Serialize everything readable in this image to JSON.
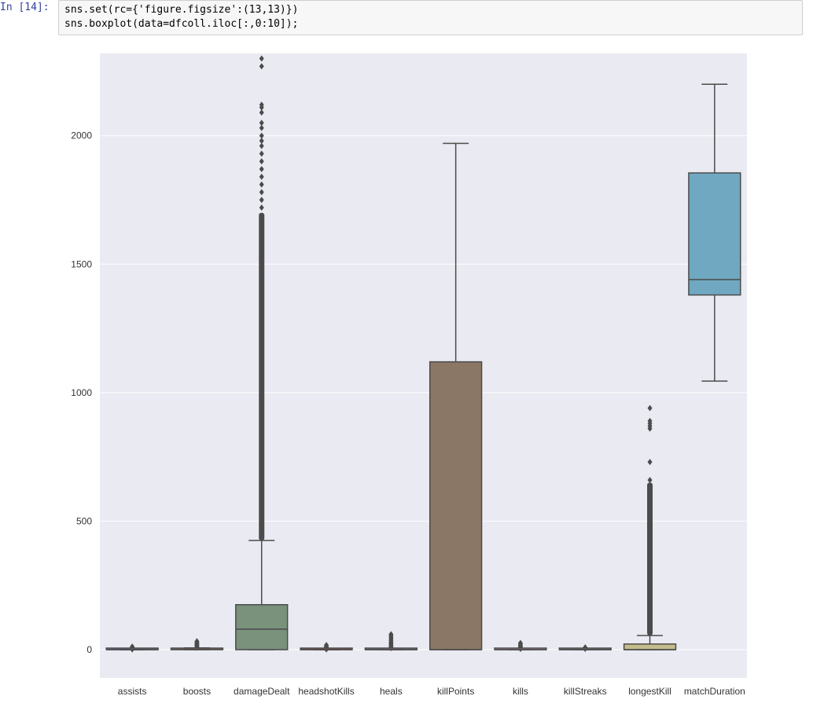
{
  "cell": {
    "prompt": "In [14]:",
    "code_lines": [
      "sns.set(rc={'figure.figsize':(13,13)})",
      "sns.boxplot(data=dfcoll.iloc[:,0:10]);"
    ]
  },
  "colors": {
    "plot_bg": "#eaeaf2",
    "grid": "#ffffff",
    "line": "#4b4b4b"
  },
  "chart_data": {
    "type": "box",
    "title": "",
    "xlabel": "",
    "ylabel": "",
    "ylim": [
      -110,
      2320
    ],
    "yticks": [
      0,
      500,
      1000,
      1500,
      2000
    ],
    "grid": true,
    "categories": [
      "assists",
      "boosts",
      "damageDealt",
      "headshotKills",
      "heals",
      "killPoints",
      "kills",
      "killStreaks",
      "longestKill",
      "matchDuration"
    ],
    "boxes": [
      {
        "name": "assists",
        "color": "#6b7fa0",
        "q1": 0,
        "median": 0,
        "q3": 0,
        "whislo": 0,
        "whishi": 0,
        "fliers": [
          1,
          2,
          3,
          4,
          5,
          6,
          7,
          8,
          10,
          12
        ]
      },
      {
        "name": "boosts",
        "color": "#c88f60",
        "q1": 0,
        "median": 1,
        "q3": 3,
        "whislo": 0,
        "whishi": 7,
        "fliers": [
          8,
          10,
          12,
          14,
          16,
          18,
          20,
          22,
          24,
          26,
          28,
          30,
          33
        ]
      },
      {
        "name": "damageDealt",
        "color": "#7a917c",
        "q1": 0,
        "median": 80,
        "q3": 175,
        "whislo": 0,
        "whishi": 425,
        "fliers_dense_range": [
          425,
          1700
        ],
        "fliers": [
          1720,
          1750,
          1780,
          1810,
          1840,
          1870,
          1900,
          1930,
          1960,
          1980,
          2000,
          2030,
          2050,
          2090,
          2110,
          2120,
          2270,
          2300
        ]
      },
      {
        "name": "headshotKills",
        "color": "#a85c5c",
        "q1": 0,
        "median": 0,
        "q3": 0,
        "whislo": 0,
        "whishi": 0,
        "fliers": [
          1,
          2,
          3,
          4,
          6,
          8,
          10,
          12,
          15,
          18
        ]
      },
      {
        "name": "heals",
        "color": "#8c7fa8",
        "q1": 0,
        "median": 0,
        "q3": 2,
        "whislo": 0,
        "whishi": 5,
        "fliers": [
          6,
          8,
          10,
          14,
          18,
          22,
          26,
          30,
          35,
          40,
          45,
          50,
          55,
          60
        ]
      },
      {
        "name": "killPoints",
        "color": "#8b7766",
        "q1": 0,
        "median": 0,
        "q3": 1120,
        "whislo": 0,
        "whishi": 1970,
        "fliers": []
      },
      {
        "name": "kills",
        "color": "#c996c0",
        "q1": 0,
        "median": 0,
        "q3": 1,
        "whislo": 0,
        "whishi": 2,
        "fliers": [
          3,
          4,
          5,
          6,
          8,
          10,
          12,
          15,
          18,
          22,
          26
        ]
      },
      {
        "name": "killStreaks",
        "color": "#8a8a8a",
        "q1": 0,
        "median": 0,
        "q3": 1,
        "whislo": 0,
        "whishi": 2,
        "fliers": [
          3,
          4,
          5,
          6,
          7,
          8,
          9
        ]
      },
      {
        "name": "longestKill",
        "color": "#c4bc8c",
        "q1": 0,
        "median": 0,
        "q3": 22,
        "whislo": 0,
        "whishi": 55,
        "fliers_dense_range": [
          55,
          650
        ],
        "fliers": [
          660,
          730,
          860,
          870,
          880,
          890,
          940
        ]
      },
      {
        "name": "matchDuration",
        "color": "#6fa8c0",
        "q1": 1380,
        "median": 1440,
        "q3": 1855,
        "whislo": 1045,
        "whishi": 2200,
        "fliers": []
      }
    ]
  }
}
